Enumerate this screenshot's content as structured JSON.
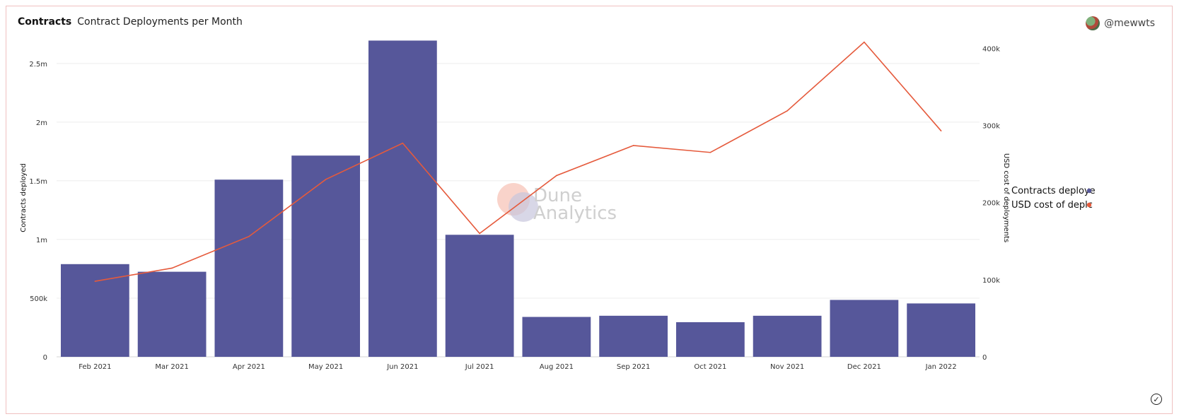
{
  "header": {
    "section": "Contracts",
    "title": "Contract Deployments per Month",
    "author": "@mewwts"
  },
  "watermark": {
    "line1": "Dune",
    "line2": "Analytics"
  },
  "colors": {
    "bars": "#56579a",
    "line": "#e55a3c",
    "grid": "#ececec",
    "border": "#f0c0c0"
  },
  "icons": {
    "avatar": "avatar-icon",
    "status": "check-circle-icon"
  },
  "chart_data": {
    "type": "bar",
    "categories": [
      "Feb 2021",
      "Mar 2021",
      "Apr 2021",
      "May 2021",
      "Jun 2021",
      "Jul 2021",
      "Aug 2021",
      "Sep 2021",
      "Oct 2021",
      "Nov 2021",
      "Dec 2021",
      "Jan 2022"
    ],
    "series": [
      {
        "name": "Contracts deployed",
        "type": "bar",
        "axis": "left",
        "values": [
          790000,
          725000,
          1510000,
          1715000,
          2695000,
          1040000,
          340000,
          350000,
          295000,
          350000,
          485000,
          455000
        ]
      },
      {
        "name": "USD cost of deployments",
        "type": "line",
        "axis": "right",
        "values": [
          98000,
          115000,
          156000,
          230000,
          277000,
          160000,
          235000,
          274000,
          265000,
          319000,
          408000,
          293000
        ]
      }
    ],
    "ylabel": "Contracts deployed",
    "y2label": "USD cost of deployments",
    "ylim": [
      0,
      2800000
    ],
    "y2lim": [
      0,
      426000
    ],
    "yticks": [
      0,
      500000,
      1000000,
      1500000,
      2000000,
      2500000
    ],
    "ytick_labels": [
      "0",
      "500k",
      "1m",
      "1.5m",
      "2m",
      "2.5m"
    ],
    "y2ticks": [
      0,
      100000,
      200000,
      300000,
      400000
    ],
    "y2tick_labels": [
      "0",
      "100k",
      "200k",
      "300k",
      "400k"
    ],
    "legend": {
      "entries": [
        "Contracts deploye",
        "USD cost of deplc"
      ],
      "placement": "right"
    },
    "grid": true
  }
}
